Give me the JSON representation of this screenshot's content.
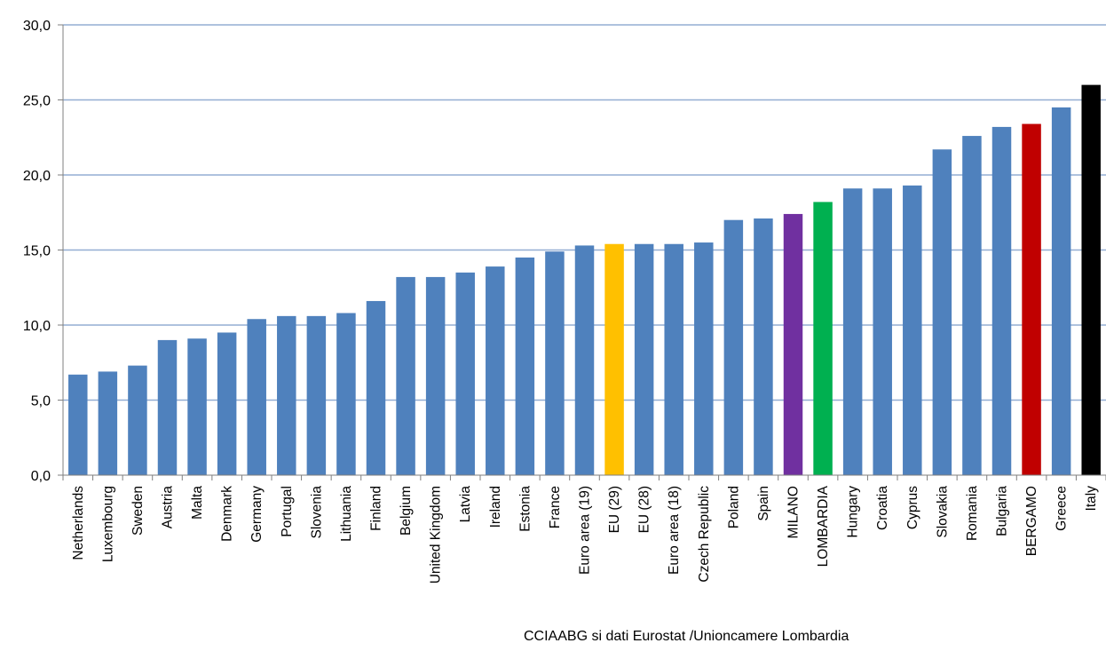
{
  "chart_data": {
    "type": "bar",
    "title": "",
    "xlabel": "",
    "ylabel": "",
    "ylim": [
      0,
      30
    ],
    "yticks": [
      "0,0",
      "5,0",
      "10,0",
      "15,0",
      "20,0",
      "25,0",
      "30,0"
    ],
    "grid": true,
    "legend": "none",
    "default_color": "#4f81bd",
    "categories": [
      "Netherlands",
      "Luxembourg",
      "Sweden",
      "Austria",
      "Malta",
      "Denmark",
      "Germany",
      "Portugal",
      "Slovenia",
      "Lithuania",
      "Finland",
      "Belgium",
      "United Kingdom",
      "Latvia",
      "Ireland",
      "Estonia",
      "France",
      "Euro area (19)",
      "EU (29)",
      "EU (28)",
      "Euro area (18)",
      "Czech Republic",
      "Poland",
      "Spain",
      "MILANO",
      "LOMBARDIA",
      "Hungary",
      "Croatia",
      "Cyprus",
      "Slovakia",
      "Romania",
      "Bulgaria",
      "BERGAMO",
      "Greece",
      "Italy"
    ],
    "values": [
      6.7,
      6.9,
      7.3,
      9.0,
      9.1,
      9.5,
      10.4,
      10.6,
      10.6,
      10.8,
      11.6,
      13.2,
      13.2,
      13.5,
      13.9,
      14.5,
      14.9,
      15.3,
      15.4,
      15.4,
      15.4,
      15.5,
      17.0,
      17.1,
      17.4,
      18.2,
      19.1,
      19.1,
      19.3,
      21.7,
      22.6,
      23.2,
      23.4,
      24.5,
      26.0
    ],
    "highlights": {
      "EU (29)": "#ffc000",
      "MILANO": "#7030a0",
      "LOMBARDIA": "#00b050",
      "BERGAMO": "#c00000",
      "Italy": "#000000"
    }
  },
  "source_note": "CCIAABG si dati Eurostat /Unioncamere Lombardia"
}
